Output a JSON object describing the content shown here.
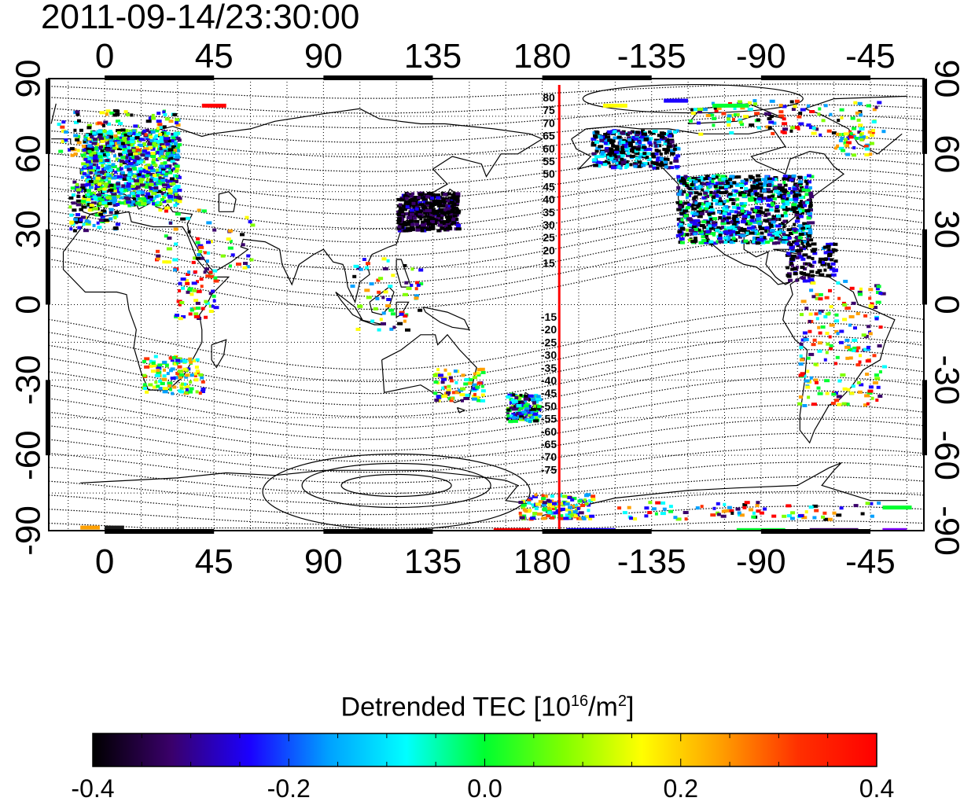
{
  "header": {
    "timestamp": "2011-09-14/23:30:00"
  },
  "map": {
    "top_axis_labels": [
      "0",
      "45",
      "90",
      "135",
      "180",
      "-135",
      "-90",
      "-45"
    ],
    "bottom_axis_labels": [
      "0",
      "45",
      "90",
      "135",
      "180",
      "-135",
      "-90",
      "-45"
    ],
    "left_axis_labels": [
      "90",
      "60",
      "30",
      "0",
      "-30",
      "-60",
      "-90"
    ],
    "right_axis_labels": [
      "90",
      "60",
      "30",
      "0",
      "-30",
      "-60",
      "-90"
    ],
    "contour_labels_north": [
      "80",
      "75",
      "70",
      "65",
      "60",
      "55",
      "50",
      "45",
      "40",
      "35",
      "30",
      "25",
      "20",
      "15"
    ],
    "contour_labels_south": [
      "-15",
      "-20",
      "-25",
      "-30",
      "-35",
      "-40",
      "-45",
      "-50",
      "-55",
      "-60",
      "-65",
      "-70",
      "-75"
    ],
    "terminator_longitude": 187,
    "terminator_color": "#ff0000"
  },
  "colorbar": {
    "title_main": "Detrended TEC  [10",
    "title_sup1": "16",
    "title_mid": "/m",
    "title_sup2": "2",
    "title_end": "]",
    "tick_labels": [
      "-0.4",
      "-0.2",
      "0.0",
      "0.2",
      "0.4"
    ],
    "range": [
      -0.4,
      0.4
    ],
    "colors": [
      "#000000",
      "#3a006a",
      "#1b00ff",
      "#00a0ff",
      "#00ffff",
      "#00ff30",
      "#7fff00",
      "#ffff00",
      "#ffa000",
      "#ff3000",
      "#ff0000"
    ]
  }
}
